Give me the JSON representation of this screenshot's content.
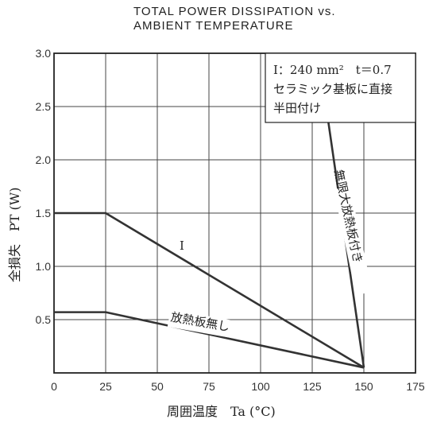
{
  "chart_data": {
    "type": "line",
    "title_line1": "TOTAL POWER DISSIPATION vs.",
    "title_line2": "AMBIENT TEMPERATURE",
    "xlabel": "周囲温度　Ta (°C)",
    "ylabel": "全損失　PT (W)",
    "xlim": [
      0,
      175
    ],
    "ylim": [
      0,
      3.0
    ],
    "x_ticks": [
      "0",
      "25",
      "50",
      "75",
      "100",
      "125",
      "150",
      "175"
    ],
    "y_ticks": [
      "0.5",
      "1.0",
      "1.5",
      "2.0",
      "2.5",
      "3.0"
    ],
    "grid": true,
    "series": [
      {
        "name": "I",
        "x": [
          0,
          25,
          150
        ],
        "y": [
          1.5,
          1.5,
          0.05
        ]
      },
      {
        "name": "放熱板無し",
        "x": [
          0,
          25,
          150
        ],
        "y": [
          0.57,
          0.57,
          0.05
        ]
      },
      {
        "name": "無限大放熱板付き",
        "x": [
          128,
          150
        ],
        "y": [
          3.0,
          0.05
        ]
      }
    ],
    "annotation": {
      "line1": "I：240 mm²　t＝0.7",
      "line2": "セラミック基板に直接",
      "line3": "半田付け"
    }
  }
}
